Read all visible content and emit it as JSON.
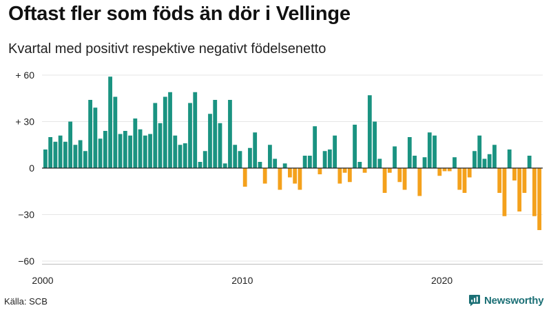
{
  "title": "Oftast fler som föds än dör i Vellinge",
  "subtitle": "Kvartal med positivt respektive negativt födelsenetto",
  "source": "Källa: SCB",
  "brand": "Newsworthy",
  "colors": {
    "positive": "#1a9381",
    "negative": "#f4a11c",
    "grid": "#e6e6e6",
    "zero_line": "#222222",
    "brand": "#1b6f75"
  },
  "chart_data": {
    "type": "bar",
    "x_start": "2000 Q1",
    "frequency": "quarterly",
    "x_tick_labels": [
      "2000",
      "2010",
      "2020"
    ],
    "y_tick_labels": [
      "+ 60",
      "+ 30",
      "0",
      "−30",
      "−60"
    ],
    "y_ticks": [
      60,
      30,
      0,
      -30,
      -60
    ],
    "ylim": [
      -62,
      66
    ],
    "grid": true,
    "values": [
      12,
      20,
      17,
      21,
      17,
      30,
      15,
      18,
      11,
      44,
      39,
      19,
      24,
      59,
      46,
      22,
      24,
      21,
      32,
      25,
      21,
      22,
      42,
      29,
      46,
      49,
      21,
      15,
      16,
      42,
      49,
      4,
      11,
      35,
      44,
      29,
      3,
      44,
      15,
      11,
      -12,
      13,
      23,
      4,
      -10,
      15,
      6,
      -14,
      3,
      -6,
      -10,
      -14,
      8,
      8,
      27,
      -4,
      11,
      12,
      21,
      -10,
      -3,
      -9,
      28,
      4,
      -3,
      47,
      30,
      6,
      -16,
      -3,
      14,
      -9,
      -14,
      20,
      8,
      -18,
      7,
      23,
      21,
      -5,
      -2,
      -2,
      7,
      -14,
      -16,
      -6,
      11,
      21,
      6,
      9,
      15,
      -16,
      -31,
      12,
      -8,
      -28,
      -16,
      8,
      -31,
      -40
    ]
  }
}
